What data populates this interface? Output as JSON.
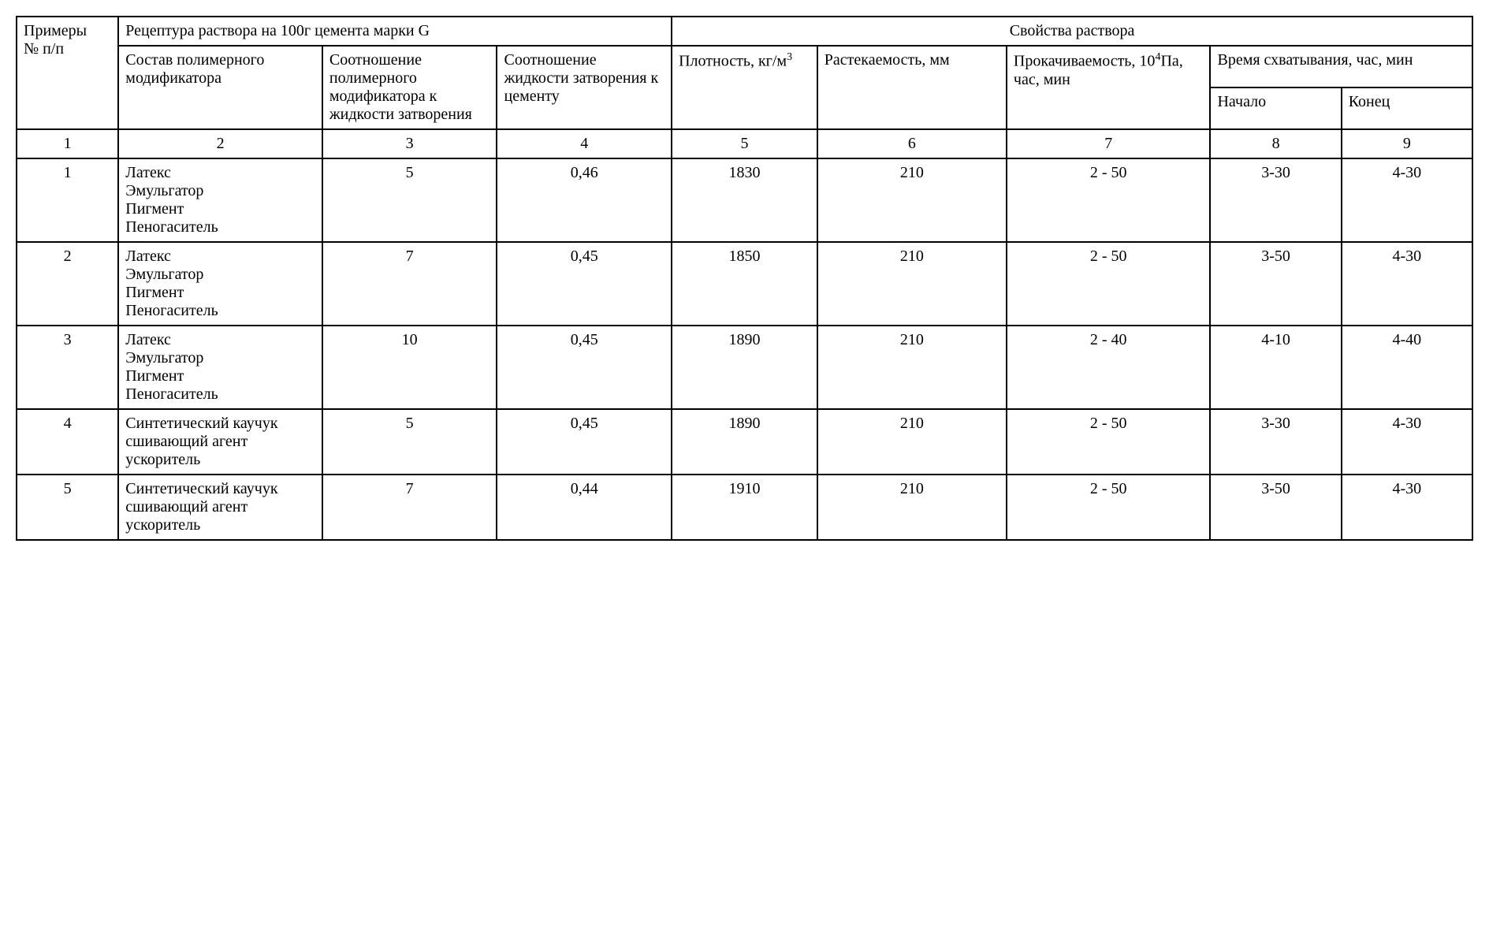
{
  "table": {
    "type": "table",
    "border_color": "#000000",
    "background_color": "#ffffff",
    "text_color": "#000000",
    "font_family": "Times New Roman",
    "base_fontsize_pt": 15,
    "col_widths_pct": [
      7,
      14,
      12,
      12,
      10,
      13,
      14,
      9,
      9
    ],
    "headers": {
      "examples": "Примеры\n№ п/п",
      "recipe_group": "Рецептура раствора на 100г цемента марки G",
      "props_group": "Свойства раствора",
      "composition": "Состав полимерного модификатора",
      "ratio_mod_liquid": "Соотношение полимерного модификатора к жидкости затворения",
      "ratio_liquid_cement": "Соотношение жидкости затворения к цементу",
      "density_prefix": "Плотность, кг/м",
      "density_sup": "3",
      "spreadability": "Растекаемость, мм",
      "pumpability_prefix": "Прокачиваемость, 10",
      "pumpability_sup": "4",
      "pumpability_suffix": "Па, час, мин",
      "set_time": "Время схватывания, час, мин",
      "set_start": "Начало",
      "set_end": "Конец"
    },
    "column_numbers": [
      "1",
      "2",
      "3",
      "4",
      "5",
      "6",
      "7",
      "8",
      "9"
    ],
    "rows": [
      {
        "n": "1",
        "composition": "Латекс\nЭмульгатор\nПигмент\nПеногаситель",
        "ratio_mod_liquid": "5",
        "ratio_liquid_cement": "0,46",
        "density": "1830",
        "spreadability": "210",
        "pumpability": "2 - 50",
        "set_start": "3-30",
        "set_end": "4-30"
      },
      {
        "n": "2",
        "composition": "Латекс\nЭмульгатор\nПигмент\nПеногаситель",
        "ratio_mod_liquid": "7",
        "ratio_liquid_cement": "0,45",
        "density": "1850",
        "spreadability": "210",
        "pumpability": "2 - 50",
        "set_start": "3-50",
        "set_end": "4-30"
      },
      {
        "n": "3",
        "composition": "Латекс\nЭмульгатор\nПигмент\nПеногаситель",
        "ratio_mod_liquid": "10",
        "ratio_liquid_cement": "0,45",
        "density": "1890",
        "spreadability": "210",
        "pumpability": "2 - 40",
        "set_start": "4-10",
        "set_end": "4-40"
      },
      {
        "n": "4",
        "composition": "Синтетический каучук\nсшивающий агент\nускоритель",
        "ratio_mod_liquid": "5",
        "ratio_liquid_cement": "0,45",
        "density": "1890",
        "spreadability": "210",
        "pumpability": "2 - 50",
        "set_start": "3-30",
        "set_end": "4-30"
      },
      {
        "n": "5",
        "composition": "Синтетический каучук\nсшивающий агент\nускоритель",
        "ratio_mod_liquid": "7",
        "ratio_liquid_cement": "0,44",
        "density": "1910",
        "spreadability": "210",
        "pumpability": "2 - 50",
        "set_start": "3-50",
        "set_end": "4-30"
      }
    ]
  }
}
